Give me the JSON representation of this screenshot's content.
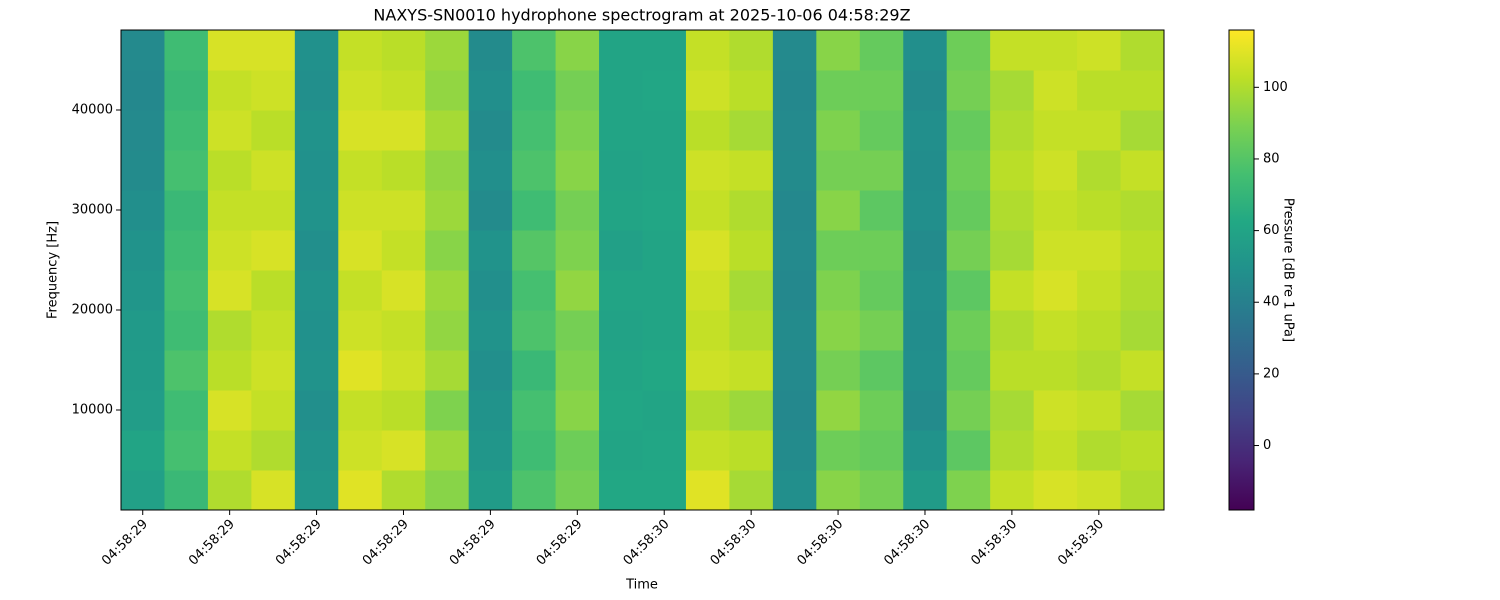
{
  "chart_data": {
    "type": "heatmap",
    "title": "NAXYS-SN0010 hydrophone spectrogram at 2025-10-06 04:58:29Z",
    "x_label": "Time",
    "y_label": "Frequency [Hz]",
    "x": [
      "04:58:29",
      null,
      "04:58:29",
      null,
      "04:58:29",
      null,
      "04:58:29",
      null,
      "04:58:29",
      null,
      "04:58:29",
      null,
      "04:58:30",
      null,
      "04:58:30",
      null,
      "04:58:30",
      null,
      "04:58:30",
      null,
      "04:58:30",
      null,
      "04:58:30",
      null
    ],
    "y_bins": [
      0,
      4000,
      8000,
      12000,
      16000,
      20000,
      24000,
      28000,
      32000,
      36000,
      40000,
      44000,
      48000
    ],
    "ylim": [
      0,
      48000
    ],
    "yticks": [
      10000,
      20000,
      30000,
      40000
    ],
    "z": [
      [
        58,
        72,
        100,
        108,
        52,
        110,
        100,
        92,
        55,
        78,
        88,
        62,
        62,
        110,
        98,
        48,
        92,
        88,
        55,
        90,
        104,
        108,
        106,
        100
      ],
      [
        60,
        76,
        104,
        100,
        50,
        106,
        108,
        96,
        52,
        74,
        86,
        60,
        61,
        104,
        102,
        46,
        86,
        84,
        50,
        82,
        100,
        104,
        100,
        102
      ],
      [
        56,
        74,
        108,
        104,
        48,
        104,
        102,
        90,
        50,
        76,
        92,
        61,
        60,
        100,
        96,
        44,
        94,
        86,
        46,
        88,
        98,
        106,
        104,
        98
      ],
      [
        55,
        78,
        102,
        106,
        50,
        110,
        106,
        98,
        48,
        72,
        90,
        60,
        62,
        106,
        104,
        45,
        88,
        82,
        48,
        84,
        102,
        102,
        100,
        104
      ],
      [
        54,
        74,
        100,
        104,
        49,
        106,
        104,
        94,
        50,
        78,
        88,
        59,
        60,
        104,
        100,
        46,
        92,
        88,
        47,
        86,
        100,
        104,
        102,
        98
      ],
      [
        52,
        76,
        108,
        102,
        50,
        104,
        108,
        96,
        48,
        76,
        94,
        60,
        60,
        106,
        98,
        44,
        90,
        84,
        48,
        82,
        104,
        108,
        104,
        100
      ],
      [
        50,
        74,
        106,
        108,
        48,
        108,
        104,
        92,
        50,
        80,
        90,
        58,
        60,
        108,
        102,
        45,
        86,
        86,
        46,
        88,
        98,
        106,
        106,
        102
      ],
      [
        48,
        72,
        104,
        104,
        50,
        106,
        106,
        96,
        46,
        74,
        88,
        60,
        61,
        104,
        100,
        44,
        92,
        82,
        48,
        84,
        100,
        104,
        102,
        100
      ],
      [
        46,
        76,
        102,
        106,
        49,
        104,
        102,
        94,
        48,
        78,
        92,
        59,
        60,
        106,
        104,
        46,
        88,
        88,
        47,
        86,
        102,
        106,
        100,
        104
      ],
      [
        45,
        74,
        106,
        102,
        50,
        108,
        108,
        98,
        46,
        76,
        90,
        60,
        60,
        102,
        98,
        45,
        90,
        84,
        48,
        84,
        100,
        104,
        104,
        98
      ],
      [
        44,
        72,
        104,
        106,
        48,
        106,
        104,
        94,
        48,
        74,
        88,
        60,
        61,
        106,
        102,
        44,
        86,
        86,
        46,
        88,
        98,
        106,
        102,
        102
      ],
      [
        45,
        74,
        108,
        108,
        49,
        104,
        102,
        96,
        46,
        78,
        92,
        60,
        60,
        104,
        100,
        45,
        92,
        84,
        48,
        86,
        104,
        104,
        106,
        100
      ]
    ],
    "colormap": "viridis",
    "colorbar_label": "Pressure [dB re 1 uPa]",
    "clim": [
      -18,
      116
    ],
    "colorbar_ticks": [
      0,
      20,
      40,
      60,
      80,
      100
    ]
  }
}
